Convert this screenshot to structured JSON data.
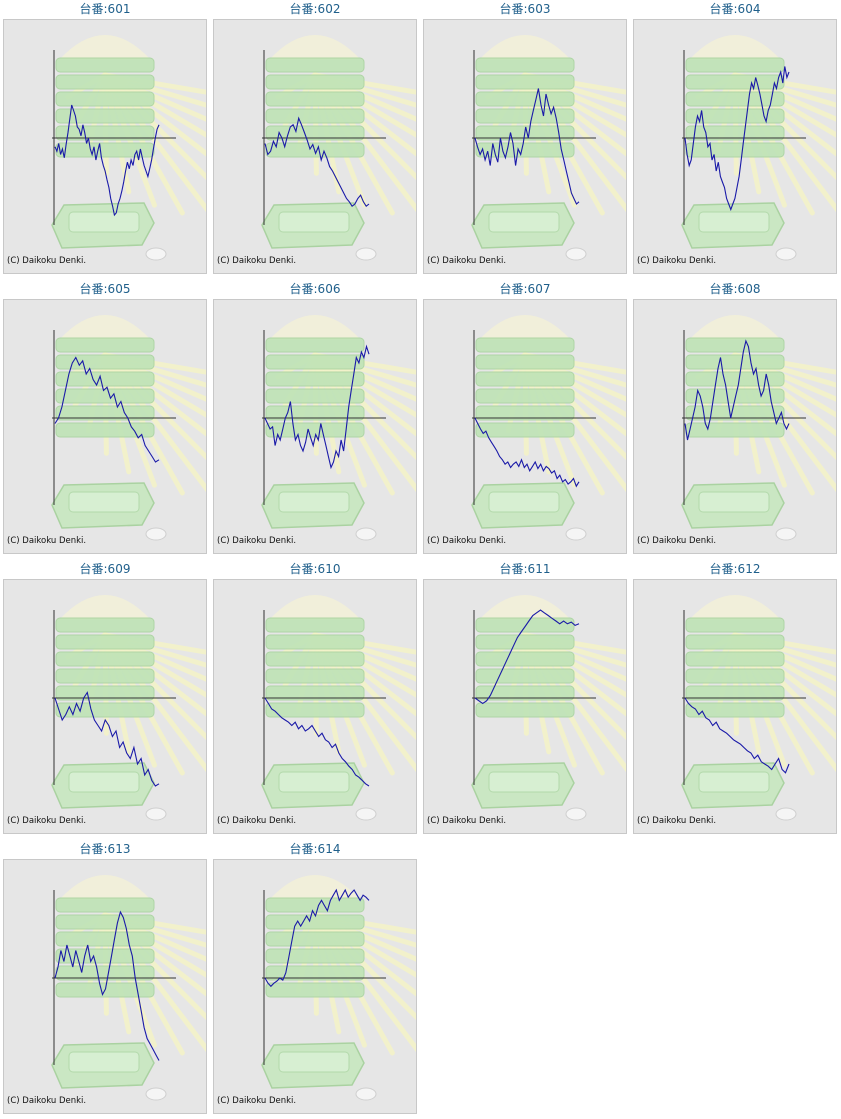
{
  "colors": {
    "line": "#1a1aa8",
    "axis": "#333333",
    "title": "#1f5f8b",
    "panel_bg": "#e6e6e6"
  },
  "chart_data": [
    {
      "type": "line",
      "title": "台番:601",
      "copyright": "(C) Daikoku Denki.",
      "values": [
        -8,
        -12,
        -5,
        -15,
        -10,
        -18,
        -6,
        5,
        18,
        30,
        25,
        20,
        10,
        8,
        2,
        12,
        5,
        -5,
        0,
        -10,
        -15,
        -8,
        -20,
        -12,
        -5,
        -18,
        -25,
        -30,
        -38,
        -45,
        -55,
        -62,
        -70,
        -68,
        -60,
        -55,
        -48,
        -40,
        -30,
        -22,
        -28,
        -20,
        -25,
        -15,
        -12,
        -20,
        -10,
        -18,
        -25,
        -30,
        -35,
        -28,
        -20,
        -10,
        0,
        8,
        12
      ]
    },
    {
      "type": "line",
      "title": "台番:602",
      "copyright": "(C) Daikoku Denki.",
      "values": [
        -5,
        -15,
        -12,
        -3,
        -8,
        5,
        0,
        -8,
        2,
        10,
        12,
        6,
        18,
        12,
        5,
        -2,
        -10,
        -6,
        -14,
        -8,
        -20,
        -12,
        -18,
        -26,
        -30,
        -35,
        -40,
        -45,
        -50,
        -55,
        -58,
        -62,
        -60,
        -55,
        -52,
        -58,
        -62,
        -60
      ]
    },
    {
      "type": "line",
      "title": "台番:603",
      "copyright": "(C) Daikoku Denki.",
      "values": [
        0,
        -8,
        -15,
        -10,
        -20,
        -12,
        -25,
        -5,
        -15,
        -22,
        0,
        -12,
        -18,
        -8,
        5,
        -5,
        -25,
        -10,
        -15,
        -5,
        10,
        0,
        15,
        25,
        35,
        45,
        30,
        20,
        40,
        30,
        22,
        28,
        18,
        5,
        -10,
        -20,
        -30,
        -40,
        -50,
        -55,
        -60,
        -58
      ]
    },
    {
      "type": "line",
      "title": "台番:604",
      "copyright": "(C) Daikoku Denki.",
      "values": [
        0,
        -15,
        -25,
        -20,
        -5,
        10,
        20,
        15,
        25,
        10,
        5,
        -8,
        -5,
        -20,
        -15,
        -30,
        -22,
        -35,
        -40,
        -45,
        -55,
        -60,
        -65,
        -60,
        -55,
        -45,
        -35,
        -20,
        -5,
        10,
        25,
        40,
        50,
        45,
        55,
        48,
        40,
        30,
        20,
        15,
        25,
        30,
        40,
        50,
        45,
        55,
        60,
        50,
        65,
        55,
        60
      ]
    },
    {
      "type": "line",
      "title": "台番:605",
      "copyright": "(C) Daikoku Denki.",
      "values": [
        -5,
        0,
        10,
        25,
        40,
        50,
        55,
        48,
        52,
        40,
        45,
        35,
        30,
        38,
        25,
        28,
        18,
        22,
        10,
        15,
        5,
        0,
        -8,
        -12,
        -18,
        -15,
        -25,
        -30,
        -35,
        -40,
        -38
      ]
    },
    {
      "type": "line",
      "title": "台番:606",
      "copyright": "(C) Daikoku Denki.",
      "values": [
        0,
        -5,
        -10,
        -8,
        -25,
        -15,
        -20,
        -10,
        0,
        5,
        15,
        -5,
        -20,
        -15,
        -25,
        -30,
        -22,
        -10,
        -18,
        -25,
        -15,
        -20,
        -5,
        -15,
        -25,
        -35,
        -45,
        -40,
        -30,
        -35,
        -20,
        -30,
        -10,
        10,
        25,
        40,
        55,
        50,
        60,
        55,
        65,
        58
      ]
    },
    {
      "type": "line",
      "title": "台番:607",
      "copyright": "(C) Daikoku Denki.",
      "values": [
        0,
        -5,
        -10,
        -14,
        -12,
        -18,
        -22,
        -26,
        -30,
        -35,
        -38,
        -42,
        -40,
        -45,
        -42,
        -40,
        -44,
        -38,
        -45,
        -42,
        -48,
        -44,
        -40,
        -46,
        -42,
        -48,
        -44,
        -46,
        -50,
        -48,
        -55,
        -52,
        -58,
        -56,
        -60,
        -58,
        -55,
        -62,
        -58
      ]
    },
    {
      "type": "line",
      "title": "台番:608",
      "copyright": "(C) Daikoku Denki.",
      "values": [
        -5,
        -20,
        -10,
        0,
        10,
        25,
        20,
        10,
        -5,
        -10,
        0,
        15,
        30,
        45,
        55,
        40,
        30,
        15,
        0,
        10,
        20,
        30,
        45,
        60,
        70,
        65,
        50,
        40,
        45,
        30,
        20,
        25,
        40,
        30,
        15,
        5,
        -5,
        0,
        5,
        -5,
        -10,
        -5
      ]
    },
    {
      "type": "line",
      "title": "台番:609",
      "copyright": "(C) Daikoku Denki.",
      "values": [
        0,
        -10,
        -20,
        -15,
        -8,
        -15,
        -5,
        -12,
        0,
        5,
        -10,
        -20,
        -25,
        -30,
        -20,
        -25,
        -35,
        -30,
        -45,
        -40,
        -50,
        -55,
        -45,
        -60,
        -55,
        -70,
        -65,
        -75,
        -80,
        -78
      ]
    },
    {
      "type": "line",
      "title": "台番:610",
      "copyright": "(C) Daikoku Denki.",
      "values": [
        0,
        -5,
        -10,
        -12,
        -15,
        -18,
        -20,
        -22,
        -25,
        -22,
        -28,
        -25,
        -30,
        -28,
        -25,
        -30,
        -35,
        -32,
        -38,
        -40,
        -45,
        -42,
        -50,
        -55,
        -58,
        -62,
        -65,
        -70,
        -72,
        -75,
        -78,
        -80
      ]
    },
    {
      "type": "line",
      "title": "台番:611",
      "copyright": "(C) Daikoku Denki.",
      "values": [
        0,
        -5,
        -10,
        -5,
        5,
        20,
        35,
        50,
        65,
        80,
        95,
        110,
        120,
        130,
        140,
        150,
        155,
        160,
        155,
        150,
        145,
        140,
        135,
        140,
        135,
        138,
        132,
        135
      ]
    },
    {
      "type": "line",
      "title": "台番:612",
      "copyright": "(C) Daikoku Denki.",
      "values": [
        0,
        -5,
        -8,
        -10,
        -15,
        -12,
        -18,
        -20,
        -25,
        -22,
        -28,
        -30,
        -32,
        -35,
        -38,
        -40,
        -42,
        -45,
        -48,
        -50,
        -55,
        -52,
        -58,
        -60,
        -62,
        -65,
        -60,
        -55,
        -65,
        -68,
        -60
      ]
    },
    {
      "type": "line",
      "title": "台番:613",
      "copyright": "(C) Daikoku Denki.",
      "values": [
        0,
        10,
        25,
        15,
        30,
        20,
        10,
        25,
        15,
        5,
        20,
        30,
        15,
        20,
        10,
        -5,
        -15,
        -10,
        5,
        20,
        35,
        50,
        60,
        55,
        45,
        30,
        20,
        0,
        -15,
        -30,
        -45,
        -55,
        -60,
        -65,
        -70,
        -75
      ]
    },
    {
      "type": "line",
      "title": "台番:614",
      "copyright": "(C) Daikoku Denki.",
      "values": [
        0,
        -5,
        -8,
        -5,
        -3,
        0,
        -2,
        5,
        20,
        35,
        50,
        55,
        50,
        55,
        60,
        55,
        65,
        60,
        70,
        75,
        70,
        65,
        75,
        80,
        85,
        75,
        80,
        85,
        78,
        82,
        85,
        80,
        75,
        80,
        78,
        75
      ]
    }
  ]
}
